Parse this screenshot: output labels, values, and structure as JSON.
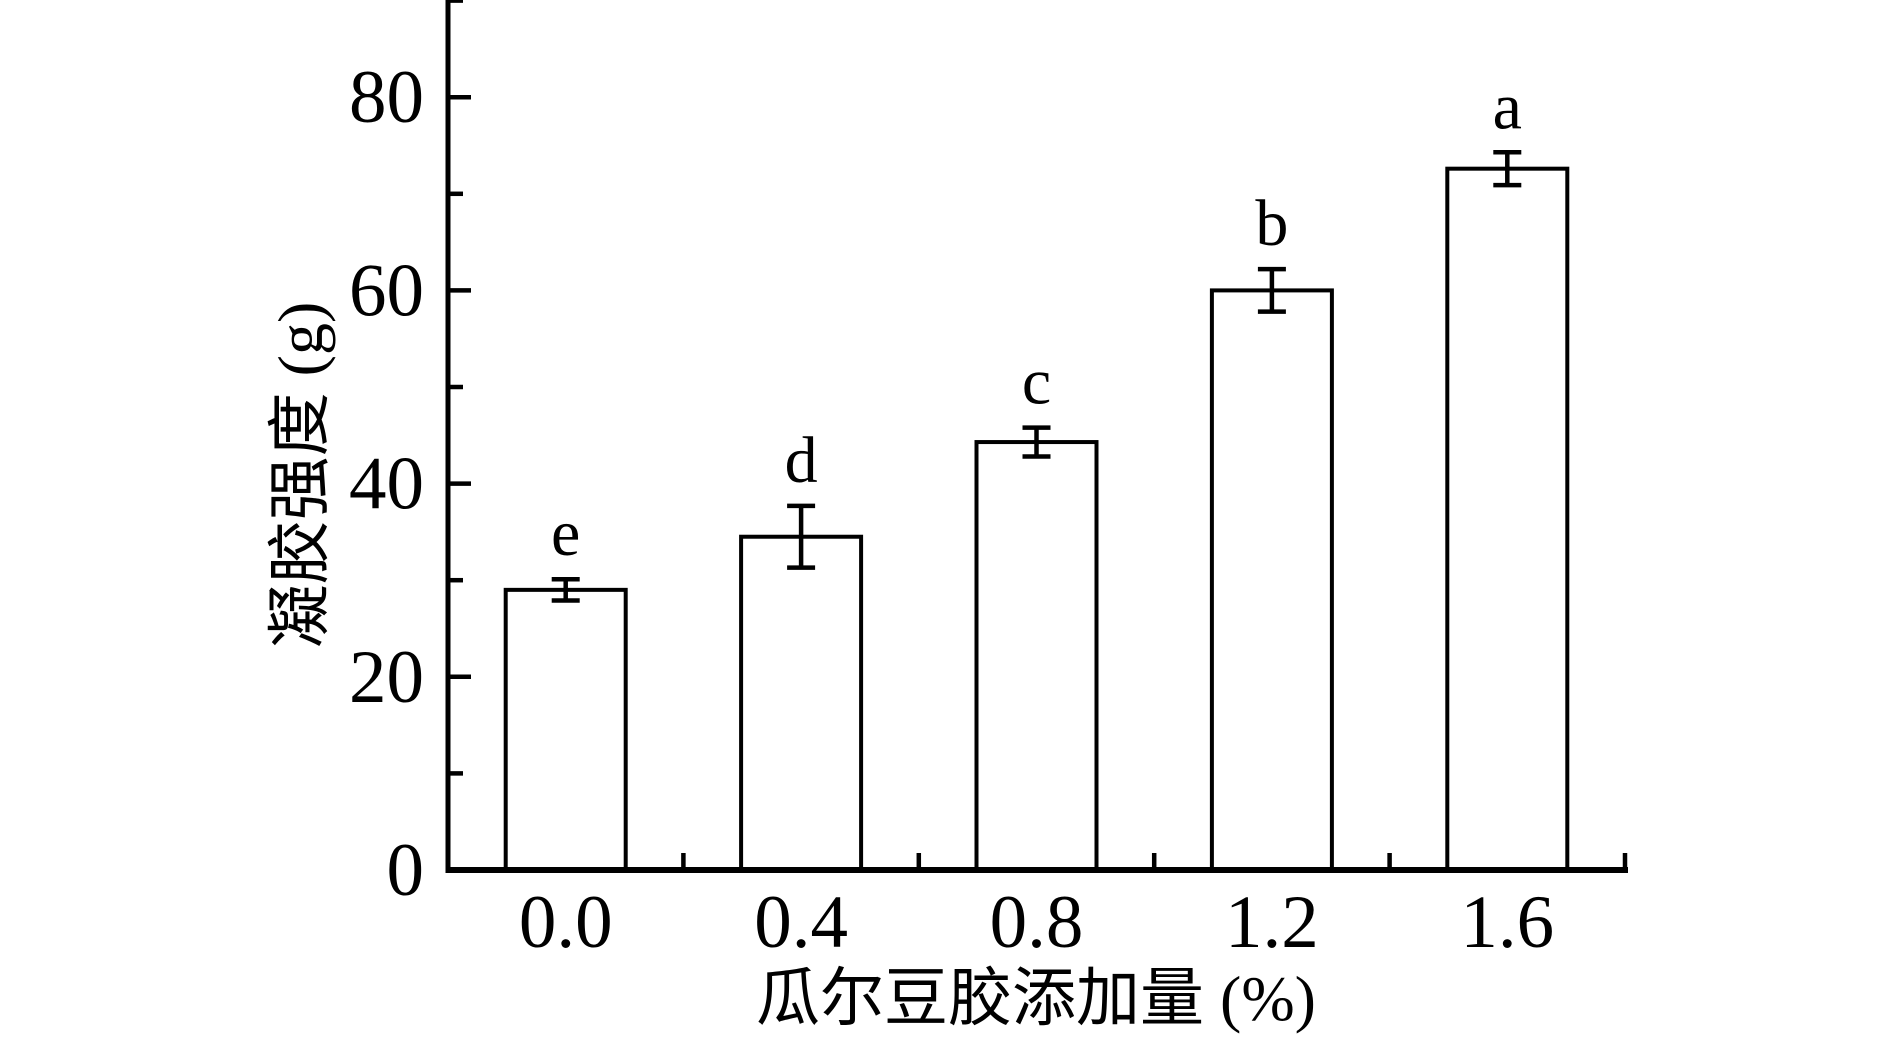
{
  "figure": {
    "background": "#ffffff",
    "foreground": "#000000"
  },
  "chart_data": {
    "type": "bar",
    "title": "",
    "categories": [
      "0.0",
      "0.4",
      "0.8",
      "1.2",
      "1.6"
    ],
    "values": [
      29.0,
      34.5,
      44.3,
      60.0,
      72.6
    ],
    "error_bars": [
      1.1,
      3.2,
      1.5,
      2.2,
      1.7
    ],
    "bar_labels": [
      "e",
      "d",
      "c",
      "b",
      "a"
    ],
    "xlabel": "瓜尔豆胶添加量 (%)",
    "ylabel": "凝胶强度 (g)",
    "ylim": [
      0,
      90
    ],
    "y_major_ticks": [
      "0",
      "20",
      "40",
      "60",
      "80"
    ],
    "y_minor_ticks": [
      10,
      30,
      50,
      70,
      90
    ],
    "grid": false,
    "legend": "none",
    "bar_fill": "#ffffff",
    "stroke_color": "#000000"
  }
}
